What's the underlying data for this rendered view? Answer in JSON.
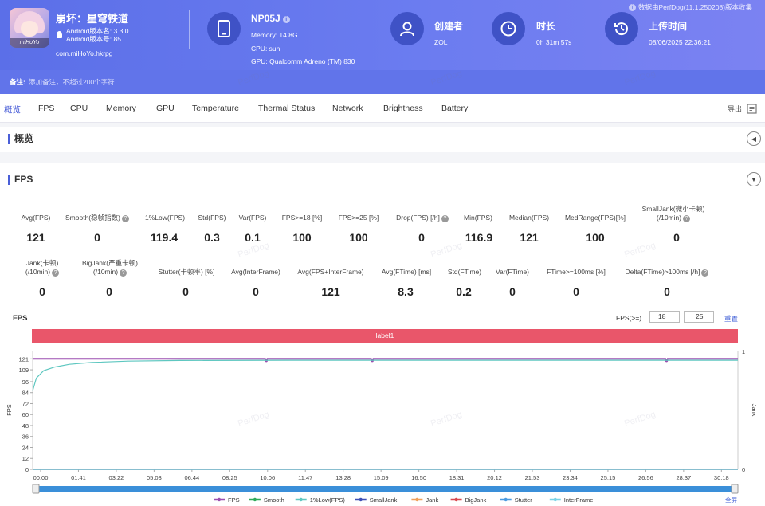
{
  "app": {
    "icon_caption": "miHoYo",
    "name": "崩坏：星穹铁道",
    "android_version_name": "Android版本名: 3.3.0",
    "android_version_code": "Android版本号: 85",
    "package": "com.miHoYo.hkrpg"
  },
  "device": {
    "name": "NP05J",
    "info_icon": "i",
    "memory": "Memory: 14.8G",
    "cpu": "CPU: sun",
    "gpu": "GPU: Qualcomm Adreno (TM) 830"
  },
  "creator": {
    "title": "创建者",
    "value": "ZOL"
  },
  "duration": {
    "title": "时长",
    "value": "0h 31m 57s"
  },
  "upload": {
    "title": "上传时间",
    "value": "08/06/2025 22:36:21"
  },
  "perfdog_note": "数据由PerfDog(11.1.250208)版本收集",
  "note": {
    "label": "备注:",
    "placeholder": "添加备注，不超过200个字符"
  },
  "tabs": [
    "概览",
    "FPS",
    "CPU",
    "Memory",
    "GPU",
    "Temperature",
    "Thermal Status",
    "Network",
    "Brightness",
    "Battery"
  ],
  "export_label": "导出",
  "watermark": "PerfDog",
  "overview": {
    "title": "概览",
    "toggle": "◀"
  },
  "fps_section": {
    "title": "FPS",
    "toggle": "▼",
    "row1": [
      {
        "label": "Avg(FPS)",
        "value": "121"
      },
      {
        "label": "Smooth(稳帧指数)",
        "value": "0",
        "help": true
      },
      {
        "label": "1%Low(FPS)",
        "value": "119.4"
      },
      {
        "label": "Std(FPS)",
        "value": "0.3"
      },
      {
        "label": "Var(FPS)",
        "value": "0.1"
      },
      {
        "label": "FPS>=18 [%]",
        "value": "100"
      },
      {
        "label": "FPS>=25 [%]",
        "value": "100"
      },
      {
        "label": "Drop(FPS) [/h]",
        "value": "0",
        "help": true
      },
      {
        "label": "Min(FPS)",
        "value": "116.9"
      },
      {
        "label": "Median(FPS)",
        "value": "121"
      },
      {
        "label": "MedRange(FPS)[%]",
        "value": "100"
      },
      {
        "label": "SmallJank(微小卡顿)",
        "label2": "(/10min)",
        "value": "0",
        "help": true
      }
    ],
    "row2": [
      {
        "label": "Jank(卡顿)",
        "label2": "(/10min)",
        "value": "0",
        "help": true
      },
      {
        "label": "BigJank(严重卡顿)",
        "label2": "(/10min)",
        "value": "0",
        "help": true
      },
      {
        "label": "Stutter(卡顿率) [%]",
        "value": "0"
      },
      {
        "label": "Avg(InterFrame)",
        "value": "0"
      },
      {
        "label": "Avg(FPS+InterFrame)",
        "value": "121"
      },
      {
        "label": "Avg(FTime) [ms]",
        "value": "8.3"
      },
      {
        "label": "Std(FTime)",
        "value": "0.2"
      },
      {
        "label": "Var(FTime)",
        "value": "0"
      },
      {
        "label": "FTime>=100ms [%]",
        "value": "0"
      },
      {
        "label": "Delta(FTime)>100ms [/h]",
        "value": "0",
        "help": true
      }
    ]
  },
  "chart_controls": {
    "title": "FPS",
    "threshold_label": "FPS(>=)",
    "threshold_a": "18",
    "threshold_b": "25",
    "reset": "重置",
    "label_bar": "label1",
    "fullscreen": "全屏"
  },
  "chart_data": {
    "type": "line",
    "ylabel": "FPS",
    "y2label": "Jank",
    "y_ticks": [
      "0",
      "12",
      "24",
      "36",
      "48",
      "60",
      "72",
      "84",
      "96",
      "109",
      "121"
    ],
    "y2_ticks": [
      "0",
      "1"
    ],
    "x_ticks": [
      "00:00",
      "01:41",
      "03:22",
      "05:03",
      "06:44",
      "08:25",
      "10:06",
      "11:47",
      "13:28",
      "15:09",
      "16:50",
      "18:31",
      "20:12",
      "21:53",
      "23:34",
      "25:15",
      "26:56",
      "28:37",
      "30:18"
    ],
    "ylim": [
      0,
      130
    ],
    "xlim_seconds": [
      0,
      1917
    ],
    "series": [
      {
        "name": "FPS",
        "color": "#9b4fb0",
        "points": [
          [
            0,
            121
          ],
          [
            200,
            121
          ],
          [
            632,
            121
          ],
          [
            635,
            119
          ],
          [
            638,
            121
          ],
          [
            920,
            121
          ],
          [
            923,
            119
          ],
          [
            926,
            121
          ],
          [
            1200,
            121
          ],
          [
            1450,
            121
          ],
          [
            1720,
            121
          ],
          [
            1723,
            119
          ],
          [
            1726,
            121
          ],
          [
            1917,
            121
          ]
        ]
      },
      {
        "name": "Smooth",
        "color": "#2eaa5a",
        "points": [
          [
            0,
            0
          ],
          [
            1917,
            0
          ]
        ]
      },
      {
        "name": "1%Low(FPS)",
        "color": "#5ec7c0",
        "points": [
          [
            0,
            86
          ],
          [
            10,
            100
          ],
          [
            30,
            108
          ],
          [
            60,
            112
          ],
          [
            100,
            115
          ],
          [
            160,
            117
          ],
          [
            260,
            118.5
          ],
          [
            400,
            119.2
          ],
          [
            700,
            119.4
          ],
          [
            1917,
            119.4
          ]
        ]
      },
      {
        "name": "SmallJank",
        "color": "#3d4fb5",
        "points": [
          [
            0,
            0
          ],
          [
            1917,
            0
          ]
        ]
      },
      {
        "name": "Jank",
        "color": "#f0a05a",
        "points": [
          [
            0,
            0
          ],
          [
            1917,
            0
          ]
        ]
      },
      {
        "name": "BigJank",
        "color": "#d9484f",
        "points": [
          [
            0,
            0
          ],
          [
            1917,
            0
          ]
        ]
      },
      {
        "name": "Stutter",
        "color": "#4a9be0",
        "points": [
          [
            0,
            0
          ],
          [
            1917,
            0
          ]
        ]
      },
      {
        "name": "InterFrame",
        "color": "#79d3e6",
        "points": [
          [
            0,
            0
          ],
          [
            1917,
            0
          ]
        ]
      }
    ],
    "legend_position": "bottom",
    "grid": true
  }
}
